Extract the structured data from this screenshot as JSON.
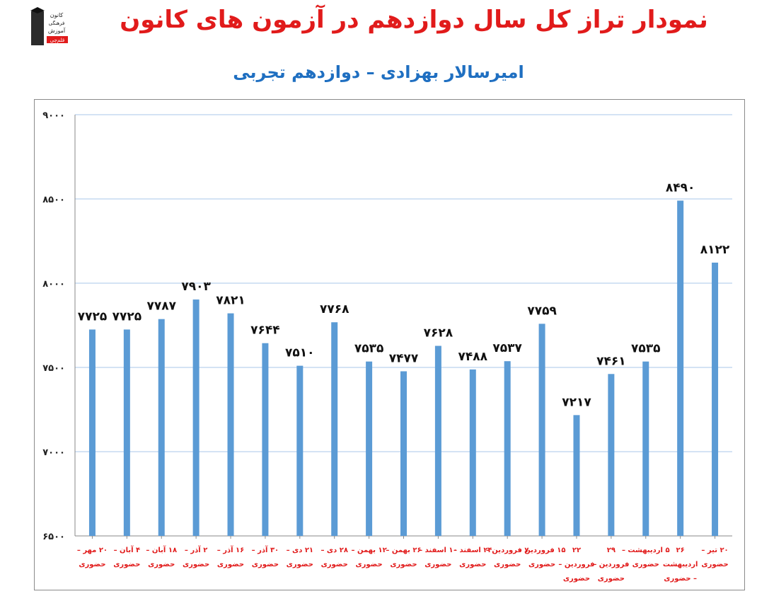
{
  "header": {
    "title": "نمودار تراز کل سال دوازدهم در آزمون های کانون",
    "subtitle": "امیرسالار بهزادی – دوازدهم تجربی",
    "logo_text": [
      "کانون",
      "فرهنگی",
      "آموزش"
    ],
    "logo_badge": "قلم‌چی"
  },
  "colors": {
    "title": "#e11b1b",
    "subtitle": "#1f6fc1",
    "bar": "#5b9bd5",
    "x_label": "#e11b1b",
    "grid": "#a9c7ea"
  },
  "chart_data": {
    "type": "bar",
    "title": "نمودار تراز کل سال دوازدهم در آزمون های کانون",
    "subtitle": "امیرسالار بهزادی – دوازدهم تجربی",
    "ylim": [
      6500,
      9000
    ],
    "y_ticks": [
      6500,
      7000,
      7500,
      8000,
      8500,
      9000
    ],
    "y_tick_labels": [
      "۶۵۰۰",
      "۷۰۰۰",
      "۷۵۰۰",
      "۸۰۰۰",
      "۸۵۰۰",
      "۹۰۰۰"
    ],
    "grid": true,
    "categories": [
      [
        "۲۰ مهر –",
        "حضوری"
      ],
      [
        "۴ آبان –",
        "حضوری"
      ],
      [
        "۱۸ آبان –",
        "حضوری"
      ],
      [
        "۲ آذر –",
        "حضوری"
      ],
      [
        "۱۶ آذر –",
        "حضوری"
      ],
      [
        "۳۰ آذر –",
        "حضوری"
      ],
      [
        "۲۱ دی –",
        "حضوری"
      ],
      [
        "۲۸ دی –",
        "حضوری"
      ],
      [
        "۱۲ بهمن –",
        "حضوری"
      ],
      [
        "۲۶ بهمن –",
        "حضوری"
      ],
      [
        "۱۰ اسفند –",
        "حضوری"
      ],
      [
        "۲۴ اسفند –",
        "حضوری"
      ],
      [
        "۷ فروردین –",
        "حضوری"
      ],
      [
        "۱۵ فروردین –",
        "حضوری"
      ],
      [
        "۲۲",
        "فروردین –",
        "حضوری"
      ],
      [
        "۲۹",
        "فروردین –",
        "حضوری"
      ],
      [
        "۵ اردیبهشت –",
        "حضوری"
      ],
      [
        "۲۶",
        "اردیبهشت",
        "– حضوری"
      ],
      [
        "۲۰ تیر –",
        "حضوری"
      ]
    ],
    "values": [
      7725,
      7725,
      7787,
      7903,
      7821,
      7644,
      7510,
      7768,
      7535,
      7477,
      7628,
      7488,
      7537,
      7759,
      7217,
      7461,
      7535,
      8490,
      8122
    ],
    "data_labels": [
      "۷۷۲۵",
      "۷۷۲۵",
      "۷۷۸۷",
      "۷۹۰۳",
      "۷۸۲۱",
      "۷۶۴۴",
      "۷۵۱۰",
      "۷۷۶۸",
      "۷۵۳۵",
      "۷۴۷۷",
      "۷۶۲۸",
      "۷۴۸۸",
      "۷۵۳۷",
      "۷۷۵۹",
      "۷۲۱۷",
      "۷۴۶۱",
      "۷۵۳۵",
      "۸۴۹۰",
      "۸۱۲۲"
    ]
  }
}
